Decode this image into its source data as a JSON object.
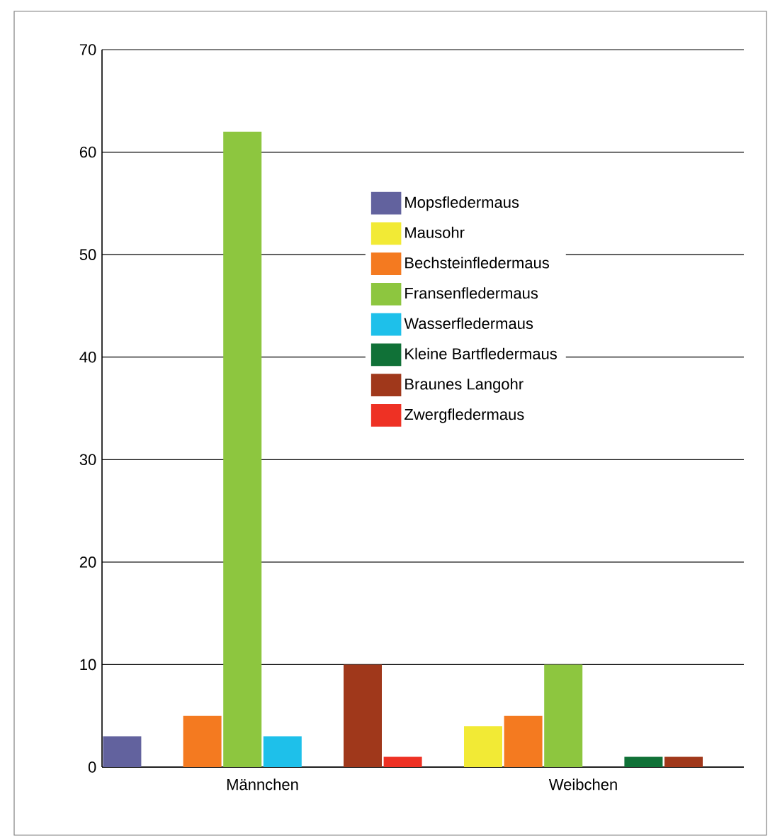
{
  "chart_data": {
    "type": "bar",
    "categories": [
      "Männchen",
      "Weibchen"
    ],
    "series": [
      {
        "name": "Mopsfledermaus",
        "color": "#62629e",
        "values": [
          3,
          0
        ]
      },
      {
        "name": "Mausohr",
        "color": "#f2ea35",
        "values": [
          0,
          4
        ]
      },
      {
        "name": "Bechsteinfledermaus",
        "color": "#f47a20",
        "values": [
          5,
          5
        ]
      },
      {
        "name": "Fransenfledermaus",
        "color": "#8dc63f",
        "values": [
          62,
          10
        ]
      },
      {
        "name": "Wasserfledermaus",
        "color": "#1ec0ea",
        "values": [
          3,
          0
        ]
      },
      {
        "name": "Kleine Bartfledermaus",
        "color": "#107137",
        "values": [
          0,
          1
        ]
      },
      {
        "name": "Braunes Langohr",
        "color": "#a0381b",
        "values": [
          10,
          1
        ]
      },
      {
        "name": "Zwergfledermaus",
        "color": "#ee3124",
        "values": [
          1,
          0
        ]
      }
    ],
    "ylim": [
      0,
      70
    ],
    "yticks": [
      0,
      10,
      20,
      30,
      40,
      50,
      60,
      70
    ],
    "grid": "y",
    "legend": "top right"
  }
}
